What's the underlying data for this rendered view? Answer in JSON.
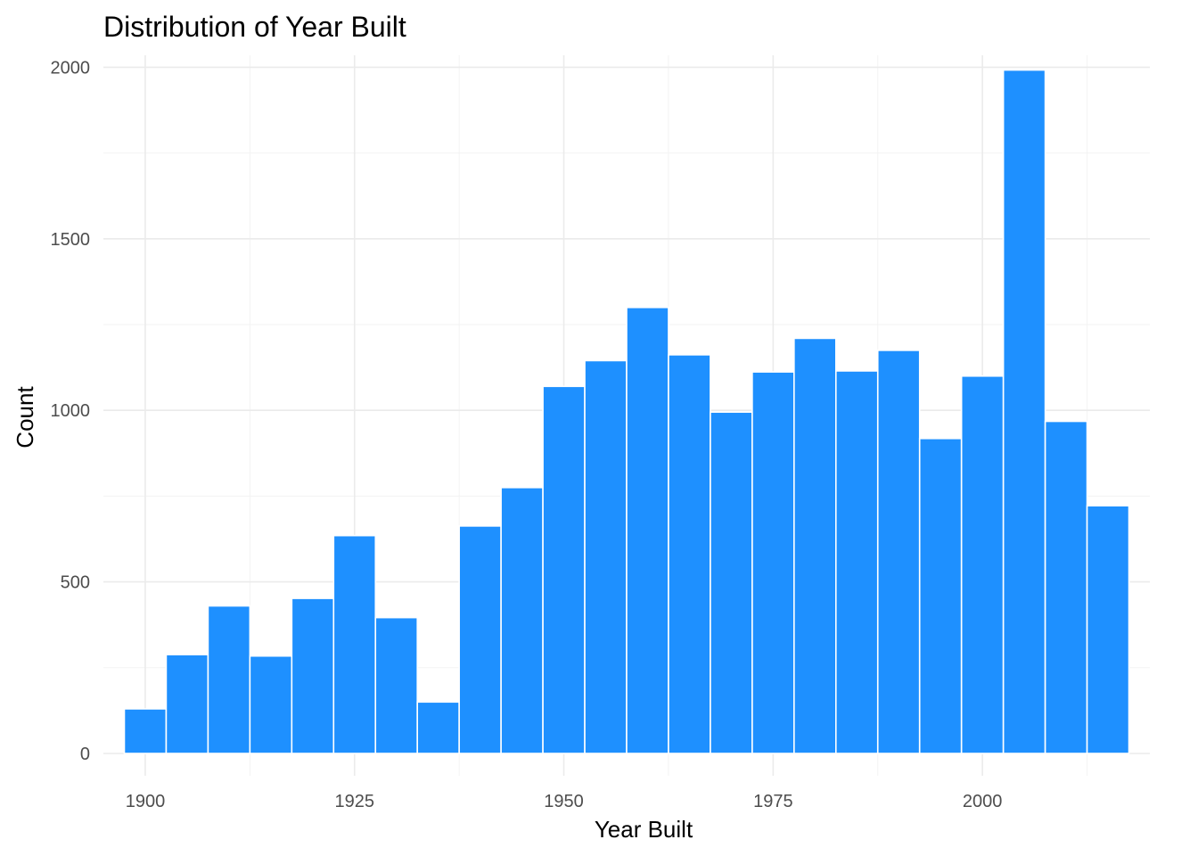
{
  "chart_data": {
    "type": "bar",
    "title": "Distribution of Year Built",
    "xlabel": "Year Built",
    "ylabel": "Count",
    "xlim": [
      1895,
      2020
    ],
    "ylim": [
      -65,
      2035
    ],
    "x_ticks": [
      1900,
      1925,
      1950,
      1975,
      2000
    ],
    "x_tick_labels": [
      "1900",
      "1925",
      "1950",
      "1975",
      "2000"
    ],
    "y_ticks": [
      0,
      500,
      1000,
      1500,
      2000
    ],
    "y_tick_labels": [
      "0",
      "500",
      "1000",
      "1500",
      "2000"
    ],
    "bin_width": 5,
    "bins": [
      {
        "start": 1897.5,
        "end": 1902.5,
        "count": 130
      },
      {
        "start": 1902.5,
        "end": 1907.5,
        "count": 288
      },
      {
        "start": 1907.5,
        "end": 1912.5,
        "count": 430
      },
      {
        "start": 1912.5,
        "end": 1917.5,
        "count": 284
      },
      {
        "start": 1917.5,
        "end": 1922.5,
        "count": 452
      },
      {
        "start": 1922.5,
        "end": 1927.5,
        "count": 635
      },
      {
        "start": 1927.5,
        "end": 1932.5,
        "count": 396
      },
      {
        "start": 1932.5,
        "end": 1937.5,
        "count": 150
      },
      {
        "start": 1937.5,
        "end": 1942.5,
        "count": 663
      },
      {
        "start": 1942.5,
        "end": 1947.5,
        "count": 775
      },
      {
        "start": 1947.5,
        "end": 1952.5,
        "count": 1070
      },
      {
        "start": 1952.5,
        "end": 1957.5,
        "count": 1145
      },
      {
        "start": 1957.5,
        "end": 1962.5,
        "count": 1300
      },
      {
        "start": 1962.5,
        "end": 1967.5,
        "count": 1162
      },
      {
        "start": 1967.5,
        "end": 1972.5,
        "count": 995
      },
      {
        "start": 1972.5,
        "end": 1977.5,
        "count": 1112
      },
      {
        "start": 1977.5,
        "end": 1982.5,
        "count": 1210
      },
      {
        "start": 1982.5,
        "end": 1987.5,
        "count": 1115
      },
      {
        "start": 1987.5,
        "end": 1992.5,
        "count": 1175
      },
      {
        "start": 1992.5,
        "end": 1997.5,
        "count": 918
      },
      {
        "start": 1997.5,
        "end": 2002.5,
        "count": 1100
      },
      {
        "start": 2002.5,
        "end": 2007.5,
        "count": 1992
      },
      {
        "start": 2007.5,
        "end": 2012.5,
        "count": 968
      },
      {
        "start": 2012.5,
        "end": 2017.5,
        "count": 722
      }
    ],
    "bar_fill": "#1E90FF",
    "bar_outline": "#FFFFFF",
    "grid": true,
    "legend": "none",
    "background": "#FFFFFF"
  }
}
